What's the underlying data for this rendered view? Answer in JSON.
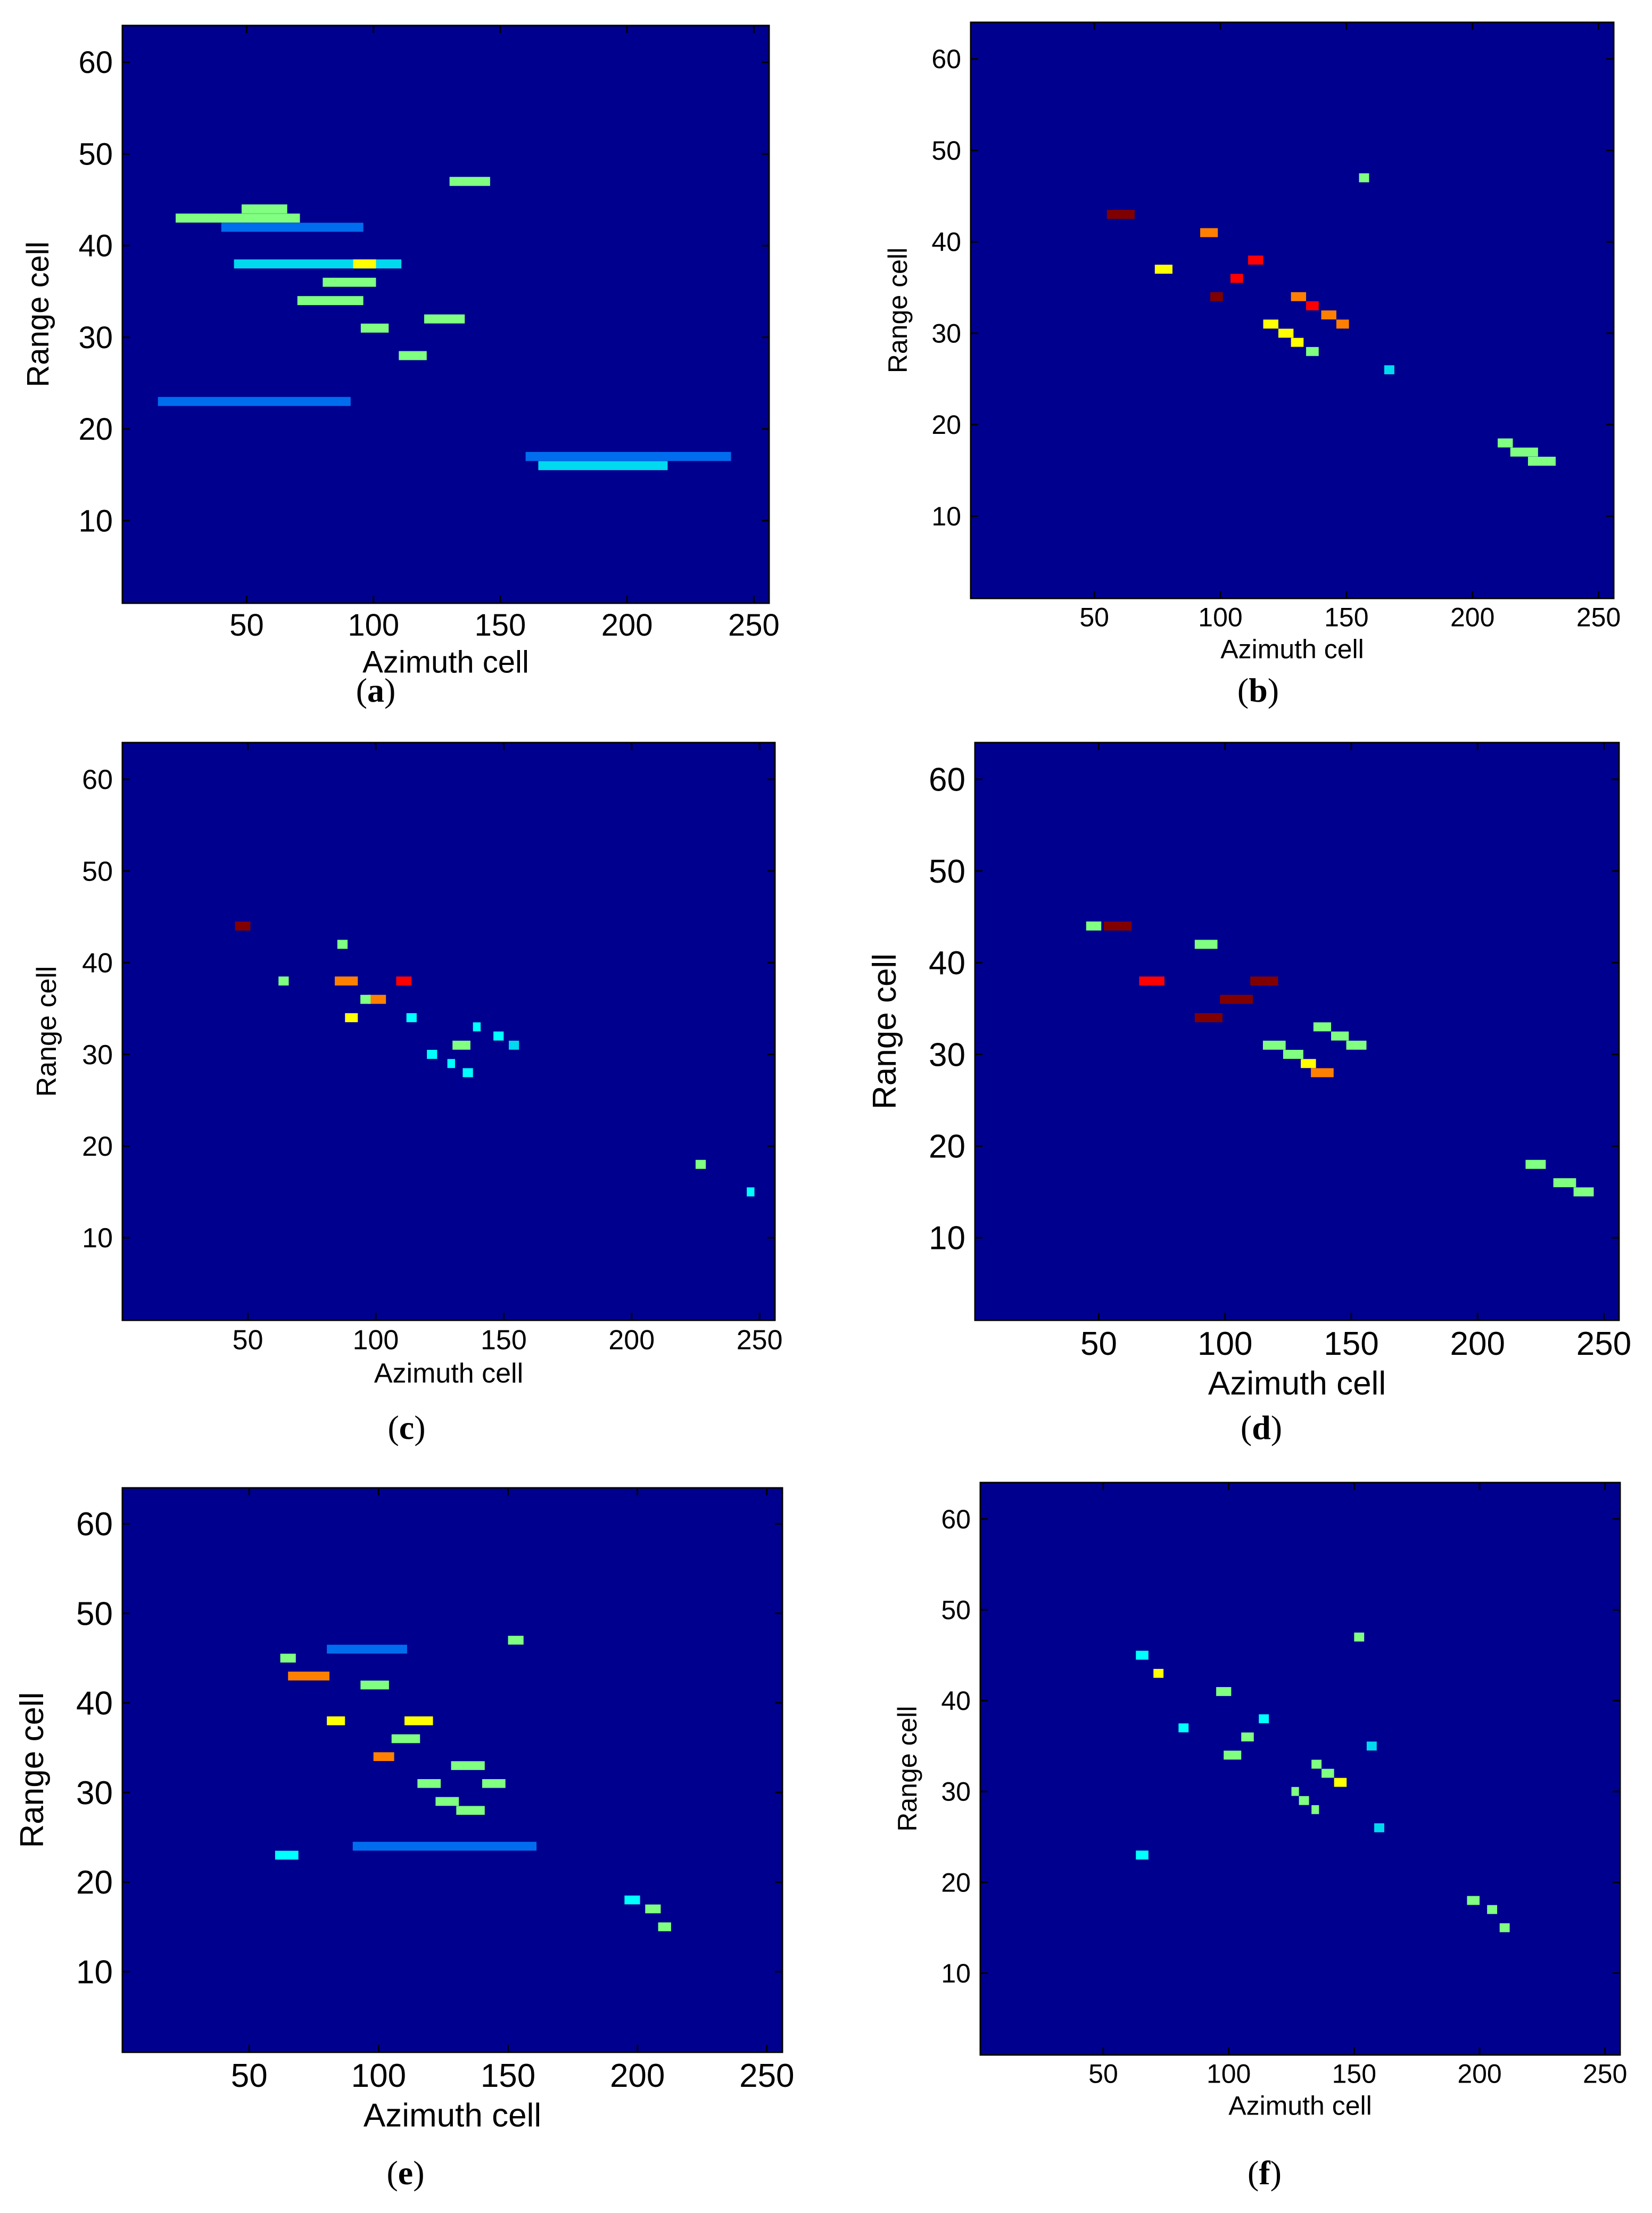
{
  "colors": {
    "background": "#00008F",
    "colormap": [
      "#00008F",
      "#0000FF",
      "#0080FF",
      "#00FFFF",
      "#80FF80",
      "#FFFF00",
      "#FF8000",
      "#FF0000",
      "#800000"
    ]
  },
  "chart_data": [
    {
      "panel": "(a)",
      "type": "heatmap",
      "xlabel": "Azimuth cell",
      "ylabel": "Range cell",
      "xlim": [
        1,
        256
      ],
      "ylim": [
        1,
        64
      ],
      "xticks": [
        50,
        100,
        150,
        200,
        250
      ],
      "yticks": [
        10,
        20,
        30,
        40,
        50,
        60
      ],
      "blobs": [
        {
          "x": [
            22,
            70
          ],
          "y": 43,
          "v": 0.45
        },
        {
          "x": [
            48,
            65
          ],
          "y": 44,
          "v": 0.5
        },
        {
          "x": [
            40,
            95
          ],
          "y": 42,
          "v": 0.3
        },
        {
          "x": [
            45,
            110
          ],
          "y": 38,
          "v": 0.35
        },
        {
          "x": [
            92,
            100
          ],
          "y": 38,
          "v": 0.6
        },
        {
          "x": [
            80,
            100
          ],
          "y": 36,
          "v": 0.45
        },
        {
          "x": [
            70,
            95
          ],
          "y": 34,
          "v": 0.5
        },
        {
          "x": [
            95,
            105
          ],
          "y": 31,
          "v": 0.45
        },
        {
          "x": [
            110,
            120
          ],
          "y": 28,
          "v": 0.5
        },
        {
          "x": [
            120,
            135
          ],
          "y": 32,
          "v": 0.45
        },
        {
          "x": [
            130,
            145
          ],
          "y": 47,
          "v": 0.45
        },
        {
          "x": [
            15,
            90
          ],
          "y": 23,
          "v": 0.3
        },
        {
          "x": [
            160,
            240
          ],
          "y": 17,
          "v": 0.3
        },
        {
          "x": [
            165,
            215
          ],
          "y": 16,
          "v": 0.35
        }
      ]
    },
    {
      "panel": "(b)",
      "type": "heatmap",
      "xlabel": "Azimuth cell",
      "ylabel": "Range cell",
      "xlim": [
        1,
        256
      ],
      "ylim": [
        1,
        64
      ],
      "xticks": [
        50,
        100,
        150,
        200,
        250
      ],
      "yticks": [
        10,
        20,
        30,
        40,
        50,
        60
      ],
      "blobs": [
        {
          "x": [
            55,
            65
          ],
          "y": 43,
          "v": 0.95
        },
        {
          "x": [
            74,
            80
          ],
          "y": 37,
          "v": 0.65
        },
        {
          "x": [
            92,
            98
          ],
          "y": 41,
          "v": 0.7
        },
        {
          "x": [
            96,
            100
          ],
          "y": 34,
          "v": 0.95
        },
        {
          "x": [
            104,
            108
          ],
          "y": 36,
          "v": 0.9
        },
        {
          "x": [
            111,
            116
          ],
          "y": 38,
          "v": 0.9
        },
        {
          "x": [
            128,
            133
          ],
          "y": 34,
          "v": 0.7
        },
        {
          "x": [
            134,
            138
          ],
          "y": 33,
          "v": 0.85
        },
        {
          "x": [
            140,
            145
          ],
          "y": 32,
          "v": 0.8
        },
        {
          "x": [
            146,
            150
          ],
          "y": 31,
          "v": 0.7
        },
        {
          "x": [
            117,
            122
          ],
          "y": 31,
          "v": 0.65
        },
        {
          "x": [
            123,
            128
          ],
          "y": 30,
          "v": 0.65
        },
        {
          "x": [
            128,
            132
          ],
          "y": 29,
          "v": 0.65
        },
        {
          "x": [
            134,
            138
          ],
          "y": 28,
          "v": 0.55
        },
        {
          "x": [
            155,
            158
          ],
          "y": 47,
          "v": 0.5
        },
        {
          "x": [
            210,
            215
          ],
          "y": 18,
          "v": 0.45
        },
        {
          "x": [
            215,
            225
          ],
          "y": 17,
          "v": 0.5
        },
        {
          "x": [
            222,
            232
          ],
          "y": 16,
          "v": 0.5
        },
        {
          "x": [
            165,
            168
          ],
          "y": 26,
          "v": 0.35
        }
      ]
    },
    {
      "panel": "(c)",
      "type": "heatmap",
      "xlabel": "Azimuth cell",
      "ylabel": "Range cell",
      "xlim": [
        1,
        256
      ],
      "ylim": [
        1,
        64
      ],
      "xticks": [
        50,
        100,
        150,
        200,
        250
      ],
      "yticks": [
        10,
        20,
        30,
        40,
        50,
        60
      ],
      "blobs": [
        {
          "x": [
            45,
            50
          ],
          "y": 44,
          "v": 0.95
        },
        {
          "x": [
            85,
            88
          ],
          "y": 42,
          "v": 0.45
        },
        {
          "x": [
            62,
            65
          ],
          "y": 38,
          "v": 0.5
        },
        {
          "x": [
            84,
            92
          ],
          "y": 38,
          "v": 0.7
        },
        {
          "x": [
            108,
            113
          ],
          "y": 38,
          "v": 0.9
        },
        {
          "x": [
            97,
            103
          ],
          "y": 36,
          "v": 0.75
        },
        {
          "x": [
            94,
            97
          ],
          "y": 36,
          "v": 0.45
        },
        {
          "x": [
            88,
            92
          ],
          "y": 34,
          "v": 0.65
        },
        {
          "x": [
            112,
            115
          ],
          "y": 34,
          "v": 0.4
        },
        {
          "x": [
            130,
            136
          ],
          "y": 31,
          "v": 0.45
        },
        {
          "x": [
            138,
            140
          ],
          "y": 33,
          "v": 0.4
        },
        {
          "x": [
            146,
            149
          ],
          "y": 32,
          "v": 0.4
        },
        {
          "x": [
            120,
            123
          ],
          "y": 30,
          "v": 0.4
        },
        {
          "x": [
            128,
            130
          ],
          "y": 29,
          "v": 0.4
        },
        {
          "x": [
            134,
            137
          ],
          "y": 28,
          "v": 0.4
        },
        {
          "x": [
            152,
            155
          ],
          "y": 31,
          "v": 0.35
        },
        {
          "x": [
            225,
            228
          ],
          "y": 18,
          "v": 0.45
        },
        {
          "x": [
            245,
            247
          ],
          "y": 15,
          "v": 0.4
        }
      ]
    },
    {
      "panel": "(d)",
      "type": "heatmap",
      "xlabel": "Azimuth cell",
      "ylabel": "Range cell",
      "xlim": [
        1,
        256
      ],
      "ylim": [
        1,
        64
      ],
      "xticks": [
        50,
        100,
        150,
        200,
        250
      ],
      "yticks": [
        10,
        20,
        30,
        40,
        50,
        60
      ],
      "blobs": [
        {
          "x": [
            45,
            50
          ],
          "y": 44,
          "v": 0.5
        },
        {
          "x": [
            52,
            62
          ],
          "y": 44,
          "v": 0.95
        },
        {
          "x": [
            66,
            75
          ],
          "y": 38,
          "v": 0.85
        },
        {
          "x": [
            88,
            96
          ],
          "y": 42,
          "v": 0.5
        },
        {
          "x": [
            88,
            98
          ],
          "y": 34,
          "v": 0.95
        },
        {
          "x": [
            98,
            110
          ],
          "y": 36,
          "v": 1.0
        },
        {
          "x": [
            110,
            120
          ],
          "y": 38,
          "v": 0.95
        },
        {
          "x": [
            115,
            123
          ],
          "y": 31,
          "v": 0.5
        },
        {
          "x": [
            123,
            130
          ],
          "y": 30,
          "v": 0.55
        },
        {
          "x": [
            130,
            135
          ],
          "y": 29,
          "v": 0.6
        },
        {
          "x": [
            134,
            142
          ],
          "y": 28,
          "v": 0.7
        },
        {
          "x": [
            135,
            141
          ],
          "y": 33,
          "v": 0.5
        },
        {
          "x": [
            142,
            148
          ],
          "y": 32,
          "v": 0.5
        },
        {
          "x": [
            148,
            155
          ],
          "y": 31,
          "v": 0.5
        },
        {
          "x": [
            219,
            226
          ],
          "y": 18,
          "v": 0.45
        },
        {
          "x": [
            230,
            238
          ],
          "y": 16,
          "v": 0.5
        },
        {
          "x": [
            238,
            245
          ],
          "y": 15,
          "v": 0.45
        }
      ]
    },
    {
      "panel": "(e)",
      "type": "heatmap",
      "xlabel": "Azimuth cell",
      "ylabel": "Range cell",
      "xlim": [
        1,
        256
      ],
      "ylim": [
        1,
        64
      ],
      "xticks": [
        50,
        100,
        150,
        200,
        250
      ],
      "yticks": [
        10,
        20,
        30,
        40,
        50,
        60
      ],
      "blobs": [
        {
          "x": [
            65,
            80
          ],
          "y": 43,
          "v": 0.75
        },
        {
          "x": [
            62,
            67
          ],
          "y": 45,
          "v": 0.45
        },
        {
          "x": [
            80,
            86
          ],
          "y": 38,
          "v": 0.6
        },
        {
          "x": [
            93,
            103
          ],
          "y": 42,
          "v": 0.45
        },
        {
          "x": [
            110,
            120
          ],
          "y": 38,
          "v": 0.6
        },
        {
          "x": [
            98,
            105
          ],
          "y": 34,
          "v": 0.75
        },
        {
          "x": [
            105,
            115
          ],
          "y": 36,
          "v": 0.5
        },
        {
          "x": [
            115,
            123
          ],
          "y": 31,
          "v": 0.5
        },
        {
          "x": [
            128,
            140
          ],
          "y": 33,
          "v": 0.5
        },
        {
          "x": [
            140,
            148
          ],
          "y": 31,
          "v": 0.55
        },
        {
          "x": [
            122,
            130
          ],
          "y": 29,
          "v": 0.45
        },
        {
          "x": [
            130,
            140
          ],
          "y": 28,
          "v": 0.5
        },
        {
          "x": [
            150,
            155
          ],
          "y": 47,
          "v": 0.45
        },
        {
          "x": [
            60,
            68
          ],
          "y": 23,
          "v": 0.4
        },
        {
          "x": [
            195,
            200
          ],
          "y": 18,
          "v": 0.4
        },
        {
          "x": [
            203,
            208
          ],
          "y": 17,
          "v": 0.45
        },
        {
          "x": [
            208,
            212
          ],
          "y": 15,
          "v": 0.45
        },
        {
          "x": [
            80,
            110
          ],
          "y": 46,
          "v": 0.22
        },
        {
          "x": [
            90,
            160
          ],
          "y": 24,
          "v": 0.2
        }
      ]
    },
    {
      "panel": "(f)",
      "type": "heatmap",
      "xlabel": "Azimuth cell",
      "ylabel": "Range cell",
      "xlim": [
        1,
        256
      ],
      "ylim": [
        1,
        64
      ],
      "xticks": [
        50,
        100,
        150,
        200,
        250
      ],
      "yticks": [
        10,
        20,
        30,
        40,
        50,
        60
      ],
      "blobs": [
        {
          "x": [
            63,
            67
          ],
          "y": 45,
          "v": 0.4
        },
        {
          "x": [
            70,
            73
          ],
          "y": 43,
          "v": 0.6
        },
        {
          "x": [
            95,
            100
          ],
          "y": 41,
          "v": 0.5
        },
        {
          "x": [
            80,
            83
          ],
          "y": 37,
          "v": 0.4
        },
        {
          "x": [
            112,
            115
          ],
          "y": 38,
          "v": 0.4
        },
        {
          "x": [
            105,
            109
          ],
          "y": 36,
          "v": 0.45
        },
        {
          "x": [
            98,
            104
          ],
          "y": 34,
          "v": 0.45
        },
        {
          "x": [
            125,
            127
          ],
          "y": 30,
          "v": 0.55
        },
        {
          "x": [
            128,
            131
          ],
          "y": 29,
          "v": 0.5
        },
        {
          "x": [
            133,
            136
          ],
          "y": 33,
          "v": 0.5
        },
        {
          "x": [
            137,
            141
          ],
          "y": 32,
          "v": 0.55
        },
        {
          "x": [
            142,
            146
          ],
          "y": 31,
          "v": 0.65
        },
        {
          "x": [
            133,
            135
          ],
          "y": 28,
          "v": 0.45
        },
        {
          "x": [
            150,
            153
          ],
          "y": 47,
          "v": 0.45
        },
        {
          "x": [
            155,
            158
          ],
          "y": 35,
          "v": 0.35
        },
        {
          "x": [
            158,
            161
          ],
          "y": 26,
          "v": 0.35
        },
        {
          "x": [
            63,
            67
          ],
          "y": 23,
          "v": 0.4
        },
        {
          "x": [
            195,
            199
          ],
          "y": 18,
          "v": 0.45
        },
        {
          "x": [
            203,
            206
          ],
          "y": 17,
          "v": 0.45
        },
        {
          "x": [
            208,
            211
          ],
          "y": 15,
          "v": 0.45
        }
      ]
    }
  ]
}
